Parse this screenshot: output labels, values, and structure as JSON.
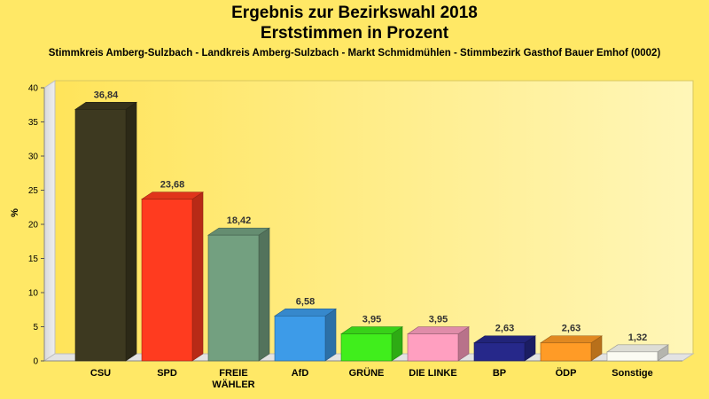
{
  "chart_data": {
    "type": "bar",
    "title": "Ergebnis zur Bezirkswahl 2018",
    "subtitle": "Erststimmen in Prozent",
    "caption": "Stimmkreis Amberg-Sulzbach - Landkreis Amberg-Sulzbach - Markt Schmidmühlen - Stimmbezirk Gasthof Bauer Emhof (0002)",
    "ylabel": "%",
    "xlabel": "",
    "ylim": [
      0,
      40
    ],
    "yticks": [
      0,
      5,
      10,
      15,
      20,
      25,
      30,
      35,
      40
    ],
    "grid": false,
    "legend": "none",
    "bars": [
      {
        "category": [
          "CSU"
        ],
        "value": 36.84,
        "label": "36,84",
        "color": "#3d3920"
      },
      {
        "category": [
          "SPD"
        ],
        "value": 23.68,
        "label": "23,68",
        "color": "#ff3b1f"
      },
      {
        "category": [
          "FREIE",
          "WÄHLER"
        ],
        "value": 18.42,
        "label": "18,42",
        "color": "#73a080"
      },
      {
        "category": [
          "AfD"
        ],
        "value": 6.58,
        "label": "6,58",
        "color": "#3d9be8"
      },
      {
        "category": [
          "GRÜNE"
        ],
        "value": 3.95,
        "label": "3,95",
        "color": "#40ee1c"
      },
      {
        "category": [
          "DIE LINKE"
        ],
        "value": 3.95,
        "label": "3,95",
        "color": "#ff9fc0"
      },
      {
        "category": [
          "BP"
        ],
        "value": 2.63,
        "label": "2,63",
        "color": "#26288a"
      },
      {
        "category": [
          "ÖDP"
        ],
        "value": 2.63,
        "label": "2,63",
        "color": "#ff9b26"
      },
      {
        "category": [
          "Sonstige"
        ],
        "value": 1.32,
        "label": "1,32",
        "color": "#fbfbf2"
      }
    ]
  }
}
